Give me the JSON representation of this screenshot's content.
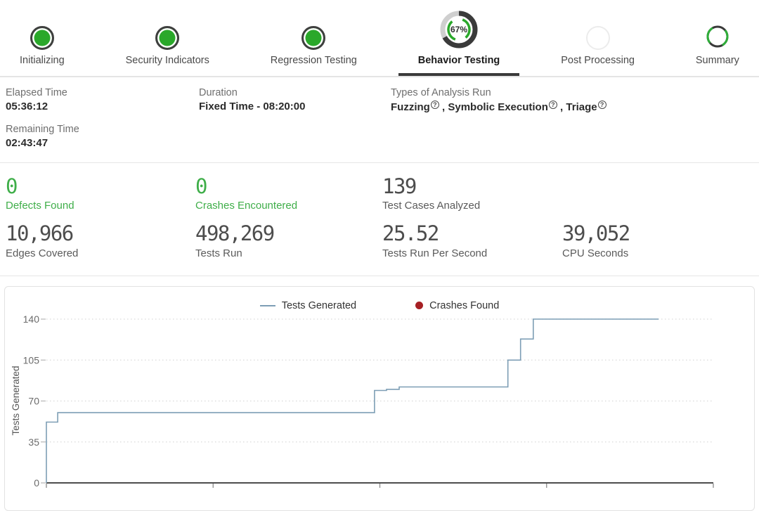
{
  "stepper": {
    "steps": [
      {
        "label": "Initializing",
        "state": "complete"
      },
      {
        "label": "Security Indicators",
        "state": "complete"
      },
      {
        "label": "Regression Testing",
        "state": "complete"
      },
      {
        "label": "Behavior Testing",
        "state": "active",
        "progress_label": "67%",
        "progress_value": 67
      },
      {
        "label": "Post Processing",
        "state": "pending"
      },
      {
        "label": "Summary",
        "state": "in-progress"
      }
    ]
  },
  "run_info": {
    "elapsed_time": {
      "label": "Elapsed Time",
      "value": "05:36:12"
    },
    "remaining_time": {
      "label": "Remaining Time",
      "value": "02:43:47"
    },
    "duration": {
      "label": "Duration",
      "value": "Fixed Time - 08:20:00"
    },
    "analysis": {
      "label": "Types of Analysis Run",
      "types": [
        "Fuzzing",
        "Symbolic Execution",
        "Triage"
      ],
      "separator": " , ",
      "help_glyph": "?"
    }
  },
  "stats": {
    "defects": {
      "value": "0",
      "label": "Defects Found"
    },
    "crashes": {
      "value": "0",
      "label": "Crashes Encountered"
    },
    "test_cases": {
      "value": "139",
      "label": "Test Cases Analyzed"
    },
    "edges": {
      "value": "10,966",
      "label": "Edges Covered"
    },
    "tests_run": {
      "value": "498,269",
      "label": "Tests Run"
    },
    "tests_per_second": {
      "value": "25.52",
      "label": "Tests Run Per Second"
    },
    "cpu_seconds": {
      "value": "39,052",
      "label": "CPU Seconds"
    }
  },
  "colors": {
    "success_green": "#2aa82a",
    "stat_green": "#3fae49",
    "ring_dark": "#3a3a3a",
    "pending_gray": "#ececec",
    "line_blue": "#7d9eb5",
    "crash_red": "#a62024"
  },
  "chart_data": {
    "type": "line",
    "step_interpolation": true,
    "title": "",
    "xlabel": "",
    "ylabel": "Tests Generated",
    "ylim": [
      0,
      146
    ],
    "yticks": [
      0,
      35,
      70,
      105,
      140
    ],
    "xlim": [
      0,
      100
    ],
    "xticks": [
      0,
      25,
      50,
      75,
      100
    ],
    "xtick_labels_visible": false,
    "grid": "dotted-horizontal",
    "legend_position": "top-center",
    "legend": [
      {
        "label": "Tests Generated",
        "marker": "line",
        "color": "#7d9eb5"
      },
      {
        "label": "Crashes Found",
        "marker": "dot",
        "color": "#a62024"
      }
    ],
    "series": [
      {
        "name": "Tests Generated",
        "color": "#7d9eb5",
        "points": [
          [
            0,
            0
          ],
          [
            0,
            52
          ],
          [
            1.7,
            52
          ],
          [
            1.7,
            60
          ],
          [
            49.2,
            60
          ],
          [
            49.2,
            79
          ],
          [
            51,
            79
          ],
          [
            51,
            80
          ],
          [
            52.9,
            80
          ],
          [
            52.9,
            82
          ],
          [
            69.2,
            82
          ],
          [
            69.2,
            105
          ],
          [
            71.1,
            105
          ],
          [
            71.1,
            123
          ],
          [
            73,
            123
          ],
          [
            73,
            140
          ],
          [
            91.8,
            140
          ]
        ]
      },
      {
        "name": "Crashes Found",
        "color": "#a62024",
        "points": []
      }
    ]
  }
}
